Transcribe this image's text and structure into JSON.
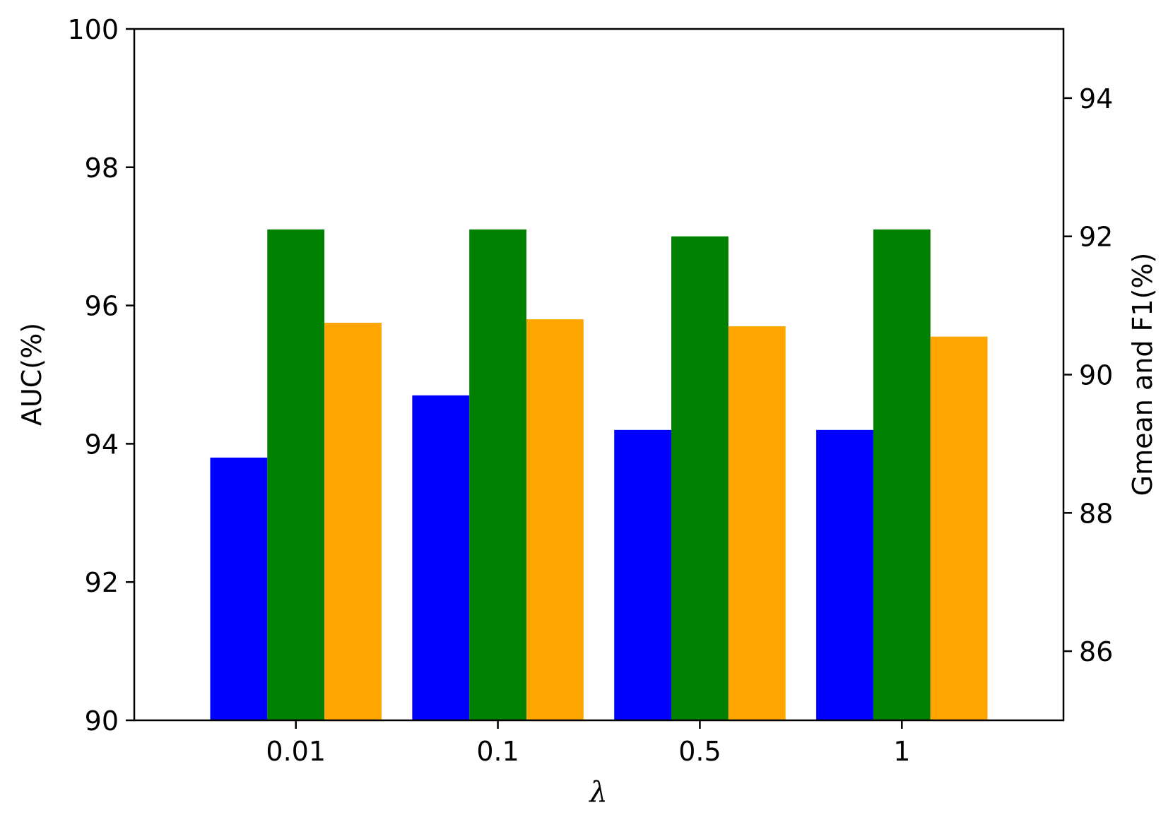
{
  "chart_data": {
    "type": "bar",
    "categories": [
      "0.01",
      "0.1",
      "0.5",
      "1"
    ],
    "xlabel": "λ",
    "ylabel_left": "AUC(%)",
    "ylabel_right": "Gmean and F1(%)",
    "ylim_left": [
      90,
      100
    ],
    "ylim_right": [
      85,
      95
    ],
    "yticks_left": [
      "90",
      "92",
      "94",
      "96",
      "98",
      "100"
    ],
    "yticks_right": [
      "86",
      "88",
      "90",
      "92",
      "94"
    ],
    "grid": false,
    "legend": "none",
    "series": [
      {
        "axis": "left",
        "color": "#0000ff",
        "values": [
          93.8,
          94.7,
          94.2,
          94.2
        ]
      },
      {
        "axis": "right",
        "color": "#008000",
        "values": [
          92.1,
          92.1,
          92.0,
          92.1
        ]
      },
      {
        "axis": "right",
        "color": "#ffa500",
        "values": [
          90.75,
          90.8,
          90.7,
          90.55
        ]
      }
    ]
  }
}
